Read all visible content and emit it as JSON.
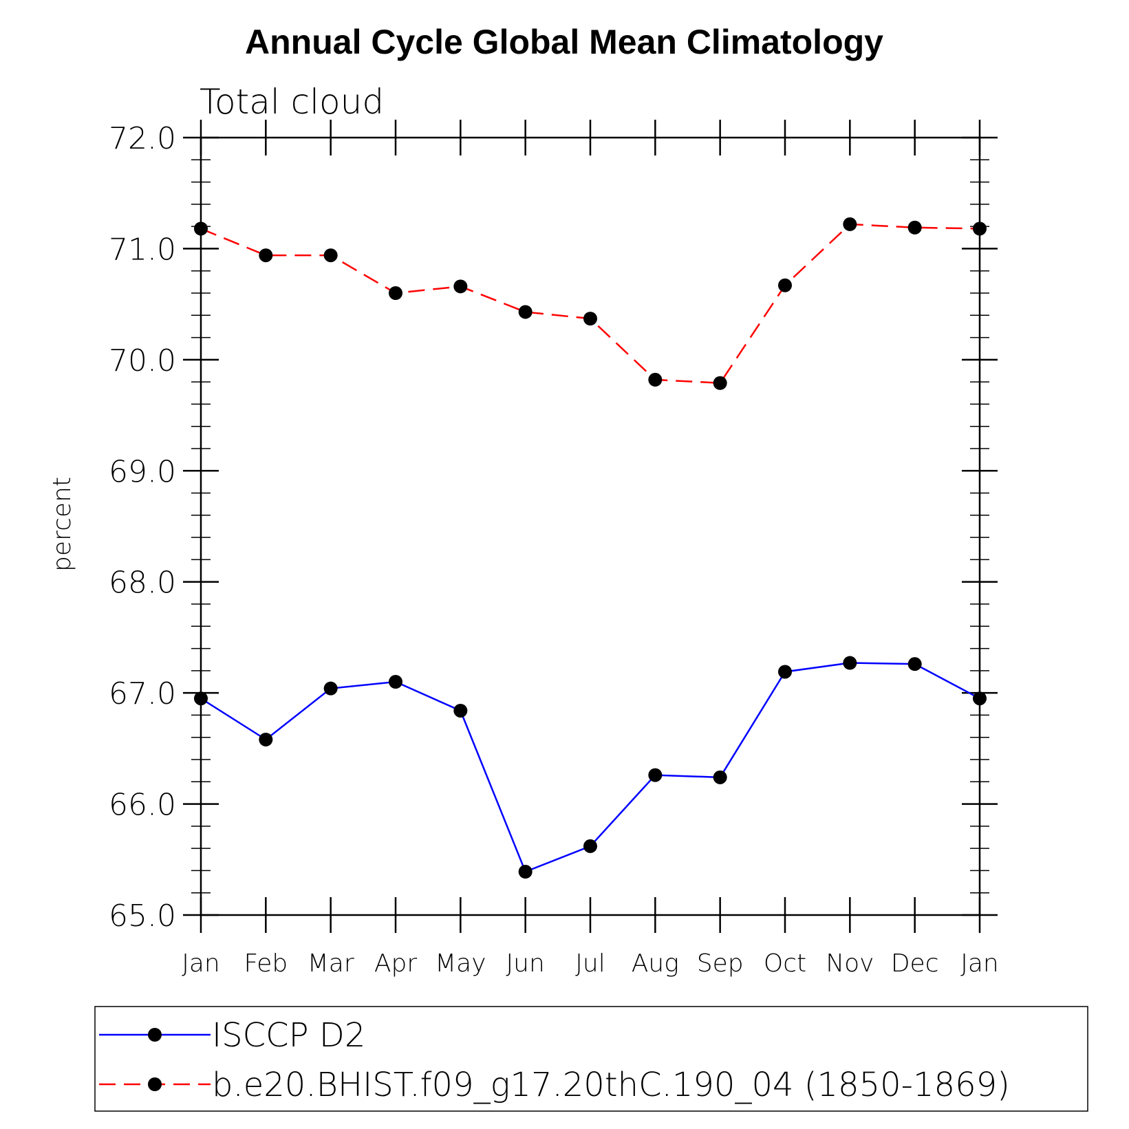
{
  "chart_data": {
    "type": "line",
    "title": "Annual Cycle Global Mean Climatology",
    "subtitle": "Total cloud",
    "xlabel": "",
    "ylabel": "percent",
    "categories": [
      "Jan",
      "Feb",
      "Mar",
      "Apr",
      "May",
      "Jun",
      "Jul",
      "Aug",
      "Sep",
      "Oct",
      "Nov",
      "Dec",
      "Jan"
    ],
    "ylim": [
      65.0,
      72.0
    ],
    "yticks": [
      "65.0",
      "66.0",
      "67.0",
      "68.0",
      "69.0",
      "70.0",
      "71.0",
      "72.0"
    ],
    "grid": false,
    "legend_position": "bottom",
    "series": [
      {
        "name": "ISCCP D2",
        "color": "#0000ff",
        "dash": "solid",
        "marker": "filled-circle",
        "values": [
          66.95,
          66.58,
          67.04,
          67.1,
          66.84,
          65.39,
          65.62,
          66.26,
          66.24,
          67.19,
          67.27,
          67.26,
          66.95
        ]
      },
      {
        "name": "b.e20.BHIST.f09_g17.20thC.190_04 (1850-1869)",
        "color": "#ff0000",
        "dash": "dashed",
        "marker": "filled-circle",
        "values": [
          71.18,
          70.94,
          70.94,
          70.6,
          70.66,
          70.43,
          70.37,
          69.82,
          69.79,
          70.67,
          71.22,
          71.19,
          71.18
        ]
      }
    ]
  }
}
